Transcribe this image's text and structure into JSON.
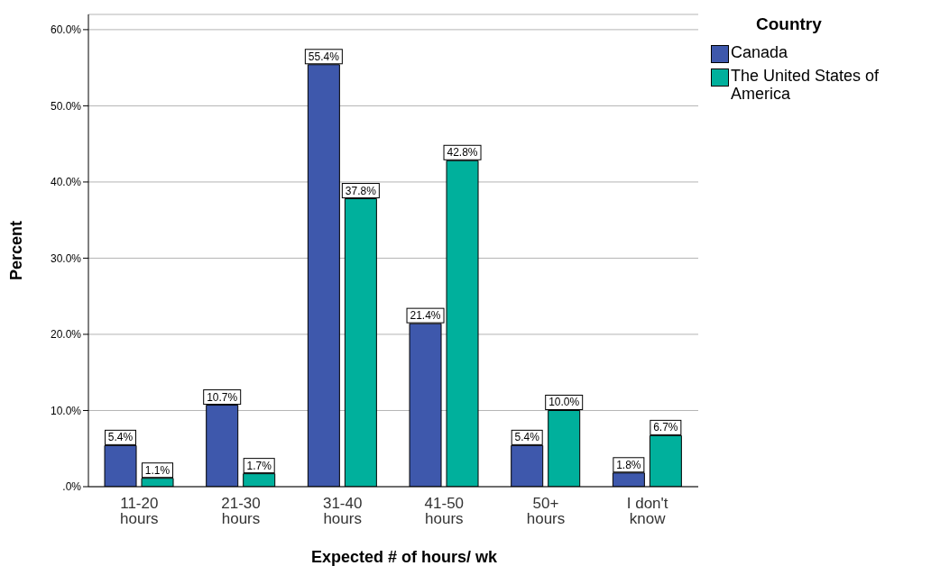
{
  "chart_data": {
    "type": "bar",
    "xlabel": "Expected # of hours/ wk",
    "ylabel": "Percent",
    "legend_title": "Country",
    "categories": [
      "11-20 hours",
      "21-30 hours",
      "31-40 hours",
      "41-50 hours",
      "50+ hours",
      "I don't know"
    ],
    "series": [
      {
        "name": "Canada",
        "color": "#3e58ac",
        "values": [
          5.4,
          10.7,
          55.4,
          21.4,
          5.4,
          1.8
        ],
        "value_labels": [
          "5.4%",
          "10.7%",
          "55.4%",
          "21.4%",
          "5.4%",
          "1.8%"
        ]
      },
      {
        "name": "The United States of America",
        "color": "#00b09c",
        "values": [
          1.1,
          1.7,
          37.8,
          42.8,
          10.0,
          6.7
        ],
        "value_labels": [
          "1.1%",
          "1.7%",
          "37.8%",
          "42.8%",
          "10.0%",
          "6.7%"
        ]
      }
    ],
    "ylim": [
      0,
      62
    ],
    "yticks": [
      {
        "value": 0,
        "label": ".0%"
      },
      {
        "value": 10,
        "label": "10.0%"
      },
      {
        "value": 20,
        "label": "20.0%"
      },
      {
        "value": 30,
        "label": "30.0%"
      },
      {
        "value": 40,
        "label": "40.0%"
      },
      {
        "value": 50,
        "label": "50.0%"
      },
      {
        "value": 60,
        "label": "60.0%"
      }
    ],
    "grid": "y",
    "legend": "top right"
  }
}
